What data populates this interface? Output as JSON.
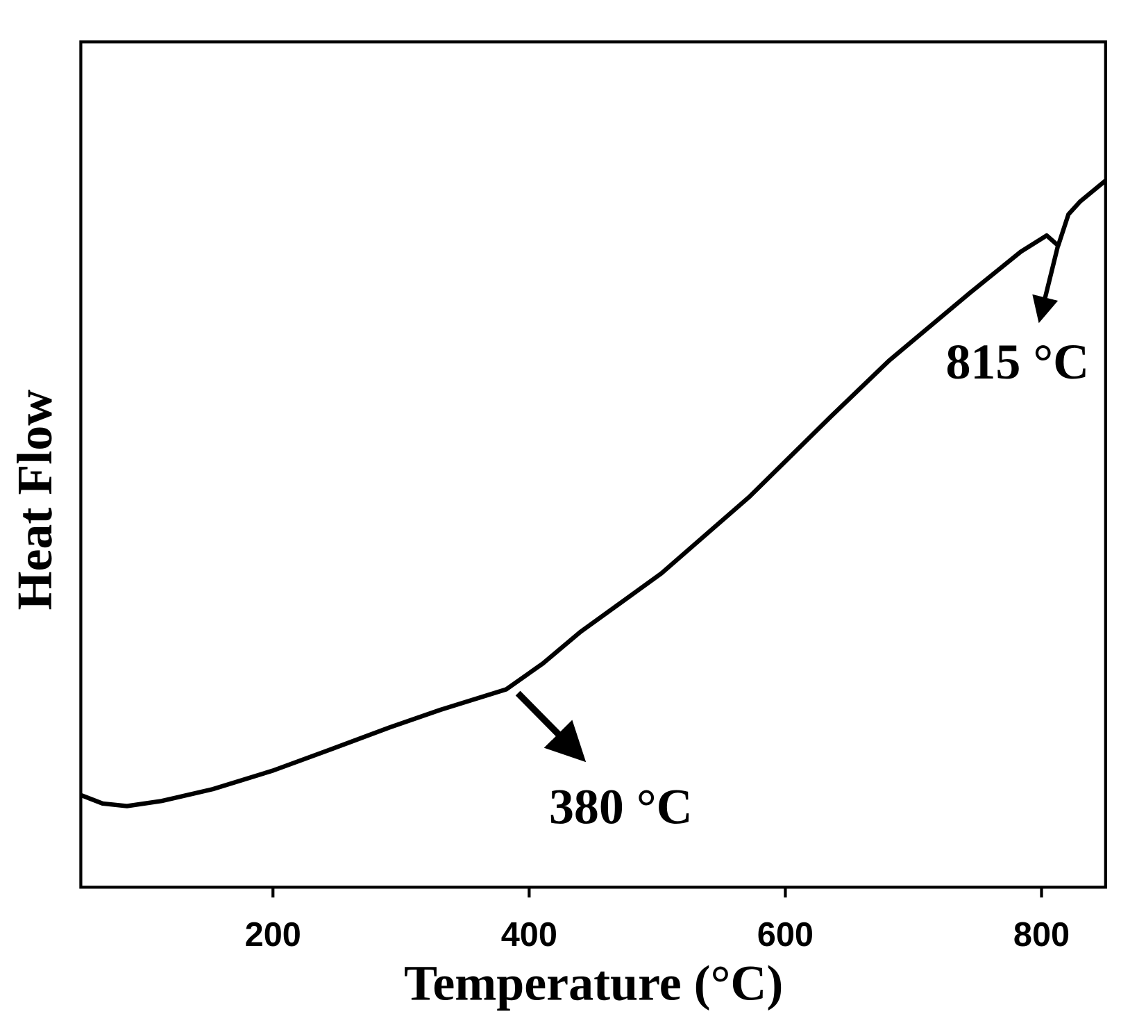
{
  "chart_data": {
    "type": "line",
    "xlabel": "Temperature (°C)",
    "ylabel": "Heat Flow",
    "annotations": [
      "380 °C",
      "815 °C"
    ],
    "xlim": [
      50,
      850
    ],
    "xticks": [
      200,
      400,
      600,
      800
    ],
    "ylim": [
      0,
      100
    ],
    "series": [
      {
        "color": "#000000",
        "x": [
          50,
          67,
          86,
          113,
          153,
          200,
          245,
          291,
          331,
          382,
          411,
          440,
          503,
          572,
          635,
          681,
          744,
          784,
          804,
          813,
          821,
          830,
          850
        ],
        "values": [
          10.9,
          9.9,
          9.6,
          10.2,
          11.6,
          13.8,
          16.3,
          18.9,
          21.0,
          23.4,
          26.5,
          30.2,
          37.1,
          46.2,
          55.6,
          62.3,
          70.3,
          75.2,
          77.1,
          75.9,
          79.6,
          81.1,
          83.6
        ]
      }
    ]
  }
}
